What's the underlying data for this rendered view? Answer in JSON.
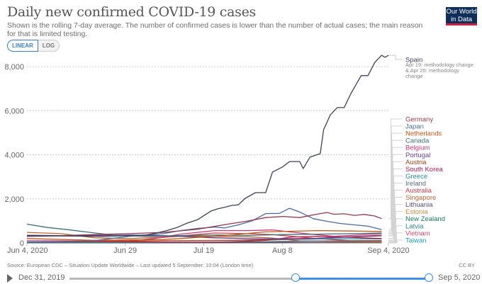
{
  "header": {
    "title": "Daily new confirmed COVID-19 cases",
    "subtitle": "Shown is the rolling 7-day average. The number of confirmed cases is lower than the number of actual cases; the main reason for that is limited testing.",
    "logo_line1": "Our World",
    "logo_line2": "in Data"
  },
  "scale_toggle": {
    "options": [
      "LINEAR",
      "LOG"
    ],
    "selected": "LINEAR"
  },
  "footer": {
    "source": "Source: European CDC – Situation Update Worldwide – Last updated 5 September, 10:04 (London time)",
    "license": "CC BY"
  },
  "timeline": {
    "start_label": "Dec 31, 2019",
    "end_label": "Sep 5, 2020",
    "range_start_fraction": 0.63,
    "range_end_fraction": 1.0,
    "accent": "#3f8ee8"
  },
  "chart_data": {
    "type": "line",
    "title": "Daily new confirmed COVID-19 cases",
    "xlabel": "",
    "ylabel": "",
    "x_start": "2020-06-04",
    "x_end": "2020-09-04",
    "x_days": 92,
    "ylim": [
      0,
      8000
    ],
    "yticks": [
      0,
      2000,
      4000,
      6000,
      8000
    ],
    "ytick_labels": [
      "0",
      "2,000",
      "4,000",
      "6,000",
      "8,000"
    ],
    "xtick_labels": [
      {
        "label": "Jun 4, 2020",
        "day": 0
      },
      {
        "label": "Jun 29",
        "day": 25
      },
      {
        "label": "Jul 19",
        "day": 45
      },
      {
        "label": "Aug 8",
        "day": 65
      },
      {
        "label": "Sep 4, 2020",
        "day": 92
      }
    ],
    "grid": true,
    "legend": "right-end-labels",
    "series": [
      {
        "name": "Spain",
        "color": "#3b4252",
        "note": [
          "Apr 19: methodology change",
          "& Apr 25: methodology",
          "change"
        ],
        "points": [
          [
            0,
            330
          ],
          [
            8,
            320
          ],
          [
            15,
            310
          ],
          [
            22,
            300
          ],
          [
            28,
            320
          ],
          [
            32,
            340
          ],
          [
            35,
            360
          ],
          [
            38,
            450
          ],
          [
            41,
            560
          ],
          [
            44,
            700
          ],
          [
            47,
            900
          ],
          [
            50,
            1050
          ],
          [
            52,
            1250
          ],
          [
            54,
            1450
          ],
          [
            56,
            1550
          ],
          [
            58,
            1620
          ],
          [
            60,
            1700
          ],
          [
            62,
            1730
          ],
          [
            64,
            2025
          ],
          [
            67,
            2280
          ],
          [
            70,
            2280
          ],
          [
            72,
            3210
          ],
          [
            75,
            3450
          ],
          [
            77,
            3690
          ],
          [
            80,
            3690
          ],
          [
            81,
            3375
          ],
          [
            83,
            3890
          ],
          [
            86,
            4050
          ],
          [
            87,
            5140
          ],
          [
            89,
            5820
          ],
          [
            91,
            6140
          ],
          [
            93,
            6140
          ],
          [
            95,
            6780
          ],
          [
            98,
            7590
          ],
          [
            100,
            7590
          ],
          [
            102,
            8190
          ],
          [
            104,
            8510
          ],
          [
            105,
            8420
          ],
          [
            106,
            8510
          ]
        ]
      },
      {
        "name": "Germany",
        "color": "#8f3a4f",
        "points": [
          [
            0,
            350
          ],
          [
            10,
            330
          ],
          [
            20,
            380
          ],
          [
            30,
            420
          ],
          [
            40,
            480
          ],
          [
            50,
            620
          ],
          [
            60,
            880
          ],
          [
            65,
            1000
          ],
          [
            70,
            1150
          ],
          [
            75,
            1200
          ],
          [
            80,
            1150
          ],
          [
            85,
            1300
          ],
          [
            88,
            1380
          ],
          [
            90,
            1300
          ],
          [
            93,
            1320
          ],
          [
            96,
            1250
          ],
          [
            99,
            1290
          ],
          [
            102,
            1220
          ],
          [
            104,
            1100
          ]
        ]
      },
      {
        "name": "Japan",
        "color": "#4c6a9c",
        "points": [
          [
            0,
            45
          ],
          [
            10,
            50
          ],
          [
            20,
            110
          ],
          [
            30,
            300
          ],
          [
            40,
            420
          ],
          [
            45,
            560
          ],
          [
            50,
            660
          ],
          [
            55,
            720
          ],
          [
            58,
            680
          ],
          [
            62,
            820
          ],
          [
            66,
            1000
          ],
          [
            70,
            1330
          ],
          [
            74,
            1340
          ],
          [
            77,
            1570
          ],
          [
            80,
            1400
          ],
          [
            84,
            1100
          ],
          [
            88,
            980
          ],
          [
            92,
            880
          ],
          [
            96,
            820
          ],
          [
            100,
            760
          ],
          [
            104,
            600
          ]
        ]
      },
      {
        "name": "Netherlands",
        "color": "#c05917",
        "points": [
          [
            0,
            200
          ],
          [
            20,
            120
          ],
          [
            40,
            150
          ],
          [
            55,
            300
          ],
          [
            70,
            500
          ],
          [
            85,
            560
          ],
          [
            95,
            540
          ],
          [
            104,
            520
          ]
        ]
      },
      {
        "name": "Canada",
        "color": "#3c6e74",
        "points": [
          [
            0,
            850
          ],
          [
            6,
            700
          ],
          [
            12,
            600
          ],
          [
            20,
            450
          ],
          [
            26,
            340
          ],
          [
            35,
            300
          ],
          [
            45,
            330
          ],
          [
            55,
            360
          ],
          [
            65,
            340
          ],
          [
            75,
            380
          ],
          [
            85,
            400
          ],
          [
            95,
            420
          ],
          [
            104,
            450
          ]
        ]
      },
      {
        "name": "Belgium",
        "color": "#c43a78",
        "points": [
          [
            0,
            100
          ],
          [
            20,
            90
          ],
          [
            35,
            140
          ],
          [
            45,
            400
          ],
          [
            55,
            560
          ],
          [
            65,
            560
          ],
          [
            72,
            590
          ],
          [
            80,
            450
          ],
          [
            90,
            300
          ],
          [
            104,
            420
          ]
        ]
      },
      {
        "name": "Portugal",
        "color": "#6c3e92",
        "points": [
          [
            0,
            300
          ],
          [
            15,
            330
          ],
          [
            30,
            360
          ],
          [
            40,
            330
          ],
          [
            55,
            230
          ],
          [
            70,
            180
          ],
          [
            85,
            210
          ],
          [
            104,
            350
          ]
        ]
      },
      {
        "name": "Austria",
        "color": "#a0481e",
        "points": [
          [
            0,
            40
          ],
          [
            20,
            60
          ],
          [
            40,
            100
          ],
          [
            60,
            120
          ],
          [
            80,
            180
          ],
          [
            100,
            300
          ],
          [
            104,
            320
          ]
        ]
      },
      {
        "name": "South Korea",
        "color": "#b12050",
        "points": [
          [
            0,
            40
          ],
          [
            20,
            50
          ],
          [
            40,
            40
          ],
          [
            60,
            40
          ],
          [
            70,
            120
          ],
          [
            78,
            270
          ],
          [
            85,
            300
          ],
          [
            95,
            250
          ],
          [
            104,
            200
          ]
        ]
      },
      {
        "name": "Greece",
        "color": "#2d8a9c",
        "points": [
          [
            0,
            10
          ],
          [
            30,
            20
          ],
          [
            50,
            30
          ],
          [
            60,
            60
          ],
          [
            75,
            150
          ],
          [
            90,
            190
          ],
          [
            104,
            180
          ]
        ]
      },
      {
        "name": "Ireland",
        "color": "#596b7c",
        "points": [
          [
            0,
            20
          ],
          [
            30,
            15
          ],
          [
            60,
            30
          ],
          [
            80,
            80
          ],
          [
            104,
            110
          ]
        ]
      },
      {
        "name": "Australia",
        "color": "#d0404f",
        "points": [
          [
            0,
            10
          ],
          [
            20,
            20
          ],
          [
            30,
            80
          ],
          [
            40,
            250
          ],
          [
            55,
            450
          ],
          [
            65,
            420
          ],
          [
            72,
            380
          ],
          [
            85,
            200
          ],
          [
            95,
            100
          ],
          [
            104,
            90
          ]
        ]
      },
      {
        "name": "Singapore",
        "color": "#b7683a",
        "points": [
          [
            0,
            480
          ],
          [
            10,
            420
          ],
          [
            20,
            230
          ],
          [
            30,
            200
          ],
          [
            45,
            300
          ],
          [
            55,
            300
          ],
          [
            65,
            280
          ],
          [
            72,
            220
          ],
          [
            80,
            90
          ],
          [
            95,
            70
          ],
          [
            104,
            50
          ]
        ]
      },
      {
        "name": "Lithuania",
        "color": "#5a4d78",
        "points": [
          [
            0,
            10
          ],
          [
            40,
            10
          ],
          [
            70,
            20
          ],
          [
            90,
            30
          ],
          [
            104,
            40
          ]
        ]
      },
      {
        "name": "Estonia",
        "color": "#c48a4e",
        "points": [
          [
            0,
            5
          ],
          [
            50,
            5
          ],
          [
            80,
            10
          ],
          [
            104,
            15
          ]
        ]
      },
      {
        "name": "New Zealand",
        "color": "#1c7a5a",
        "points": [
          [
            0,
            3
          ],
          [
            60,
            2
          ],
          [
            75,
            10
          ],
          [
            90,
            12
          ],
          [
            104,
            5
          ]
        ]
      },
      {
        "name": "Latvia",
        "color": "#2b8080",
        "points": [
          [
            0,
            3
          ],
          [
            50,
            3
          ],
          [
            104,
            8
          ]
        ]
      },
      {
        "name": "Vietnam",
        "color": "#d04a6a",
        "points": [
          [
            0,
            2
          ],
          [
            50,
            2
          ],
          [
            60,
            30
          ],
          [
            70,
            45
          ],
          [
            80,
            30
          ],
          [
            104,
            10
          ]
        ]
      },
      {
        "name": "Taiwan",
        "color": "#1f9aa8",
        "points": [
          [
            0,
            1
          ],
          [
            104,
            2
          ]
        ]
      }
    ]
  }
}
